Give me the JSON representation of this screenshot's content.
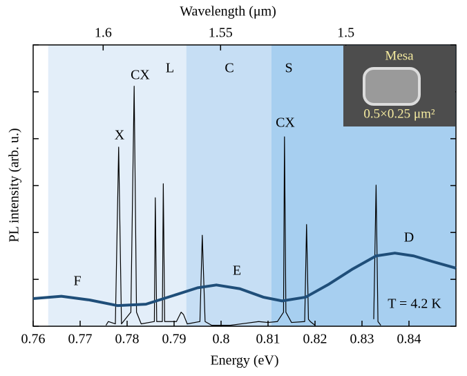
{
  "chart_data": {
    "type": "line",
    "xlabel": "Energy (eV)",
    "ylabel": "PL intensity (arb. u.)",
    "x2label": "Wavelength (μm)",
    "xlim": [
      0.76,
      0.85
    ],
    "xticks": [
      0.76,
      0.77,
      0.78,
      0.79,
      0.8,
      0.81,
      0.82,
      0.83,
      0.84
    ],
    "ylim": [
      0,
      6
    ],
    "yticks": [
      0,
      1,
      2,
      3,
      4,
      5,
      6
    ],
    "x2ticks": [
      1.6,
      1.55,
      1.5
    ],
    "bands": [
      {
        "name": "L",
        "range": [
          0.7632,
          0.7926
        ],
        "color": "#e3eef9"
      },
      {
        "name": "C",
        "range": [
          0.7926,
          0.8107
        ],
        "color": "#c6def4"
      },
      {
        "name": "S",
        "range": [
          0.8107,
          0.85
        ],
        "color": "#a7cff0"
      }
    ],
    "series": [
      {
        "color": "#1f4e79",
        "x": [
          0.76,
          0.766,
          0.772,
          0.778,
          0.784,
          0.79,
          0.795,
          0.799,
          0.804,
          0.809,
          0.813,
          0.818,
          0.823,
          0.828,
          0.833,
          0.837,
          0.841,
          0.845,
          0.85
        ],
        "values": [
          0.59,
          0.64,
          0.56,
          0.44,
          0.47,
          0.66,
          0.82,
          0.88,
          0.8,
          0.62,
          0.54,
          0.62,
          0.9,
          1.22,
          1.5,
          1.56,
          1.5,
          1.38,
          1.24
        ]
      },
      {
        "color": "#000000",
        "x": [
          0.7755,
          0.776,
          0.7775,
          0.7782,
          0.7788,
          0.78,
          0.7808,
          0.7815,
          0.782,
          0.783,
          0.7858,
          0.786,
          0.7863,
          0.7875,
          0.7877,
          0.788,
          0.7905,
          0.7915,
          0.792,
          0.7928,
          0.7955,
          0.796,
          0.7966,
          0.798,
          0.802,
          0.805,
          0.808,
          0.81,
          0.812,
          0.8133,
          0.8135,
          0.8138,
          0.815,
          0.8178,
          0.8182,
          0.8186,
          0.819,
          0.82,
          0.8318,
          0.8325,
          0.833,
          0.8334,
          0.834
        ],
        "values": [
          0.02,
          0.1,
          0.05,
          3.82,
          0.05,
          0.2,
          0.3,
          5.12,
          0.3,
          0.05,
          0.1,
          2.74,
          0.1,
          0.1,
          3.04,
          0.1,
          0.1,
          0.3,
          0.25,
          0.05,
          0.1,
          1.94,
          0.1,
          0.02,
          0.02,
          0.06,
          0.1,
          0.08,
          0.1,
          0.3,
          4.04,
          0.3,
          0.08,
          0.1,
          2.17,
          0.15,
          0.1,
          0.02,
          null,
          0.15,
          3.01,
          0.1,
          0.02
        ]
      }
    ],
    "annotations": [
      "F",
      "E",
      "D",
      "X",
      "CX",
      "CX",
      "T = 4.2 K"
    ],
    "inset": {
      "title": "Mesa",
      "size": "0.5×0.25 μm²"
    }
  }
}
